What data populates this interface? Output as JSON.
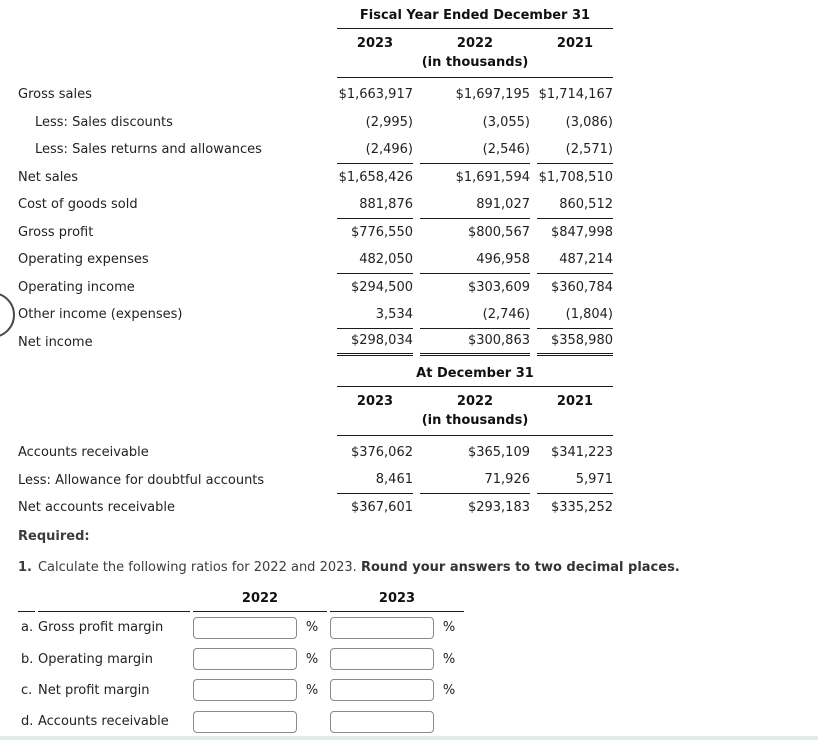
{
  "colors": {
    "rule_line": "#1a1a1a",
    "text": "#222222",
    "secondary_text": "#3d3d3d",
    "input_border": "#8a8a8a",
    "bottom_bar": "#e3ebec"
  },
  "income_statement": {
    "title": "Fiscal Year Ended December 31",
    "years": [
      "2023",
      "2022",
      "2021"
    ],
    "units_note": "(in thousands)",
    "rows": [
      {
        "label": "Gross sales",
        "indent": false,
        "values": [
          "$1,663,917",
          "$1,697,195",
          "$1,714,167"
        ],
        "rule": null
      },
      {
        "label": "Less: Sales discounts",
        "indent": true,
        "values": [
          "(2,995)",
          "(3,055)",
          "(3,086)"
        ],
        "rule": null
      },
      {
        "label": "Less: Sales returns and allowances",
        "indent": true,
        "values": [
          "(2,496)",
          "(2,546)",
          "(2,571)"
        ],
        "rule": "single"
      },
      {
        "label": "Net sales",
        "indent": false,
        "values": [
          "$1,658,426",
          "$1,691,594",
          "$1,708,510"
        ],
        "rule": null
      },
      {
        "label": "Cost of goods sold",
        "indent": false,
        "values": [
          "881,876",
          "891,027",
          "860,512"
        ],
        "rule": "single"
      },
      {
        "label": "Gross profit",
        "indent": false,
        "values": [
          "$776,550",
          "$800,567",
          "$847,998"
        ],
        "rule": null
      },
      {
        "label": "Operating expenses",
        "indent": false,
        "values": [
          "482,050",
          "496,958",
          "487,214"
        ],
        "rule": "single"
      },
      {
        "label": "Operating income",
        "indent": false,
        "values": [
          "$294,500",
          "$303,609",
          "$360,784"
        ],
        "rule": null
      },
      {
        "label": "Other income (expenses)",
        "indent": false,
        "values": [
          "3,534",
          "(2,746)",
          "(1,804)"
        ],
        "rule": "single"
      },
      {
        "label": "Net income",
        "indent": false,
        "values": [
          "$298,034",
          "$300,863",
          "$358,980"
        ],
        "rule": "double"
      }
    ]
  },
  "balance_section": {
    "title": "At December 31",
    "years": [
      "2023",
      "2022",
      "2021"
    ],
    "units_note": "(in thousands)",
    "rows": [
      {
        "label": "Accounts receivable",
        "indent": false,
        "values": [
          "$376,062",
          "$365,109",
          "$341,223"
        ],
        "rule": null
      },
      {
        "label": "Less: Allowance for doubtful accounts",
        "indent": false,
        "values": [
          "8,461",
          "71,926",
          "5,971"
        ],
        "rule": "single"
      },
      {
        "label": "Net accounts receivable",
        "indent": false,
        "values": [
          "$367,601",
          "$293,183",
          "$335,252"
        ],
        "rule": null
      }
    ]
  },
  "required": {
    "heading": "Required:",
    "item_number": "1.",
    "instruction_normal": "Calculate the following ratios for 2022 and 2023.",
    "instruction_bold": "Round your answers to two decimal places.",
    "table": {
      "col_headers": [
        "2022",
        "2023"
      ],
      "rows": [
        {
          "key": "gross-profit-margin",
          "letter": "a.",
          "label": "Gross profit margin",
          "suffix": "%",
          "value_2022": "",
          "value_2023": ""
        },
        {
          "key": "operating-margin",
          "letter": "b.",
          "label": "Operating margin",
          "suffix": "%",
          "value_2022": "",
          "value_2023": ""
        },
        {
          "key": "net-profit-margin",
          "letter": "c.",
          "label": "Net profit margin",
          "suffix": "%",
          "value_2022": "",
          "value_2023": ""
        },
        {
          "key": "accounts-receivable",
          "letter": "d.",
          "label": "Accounts receivable",
          "suffix": "",
          "value_2022": "",
          "value_2023": ""
        }
      ]
    }
  }
}
